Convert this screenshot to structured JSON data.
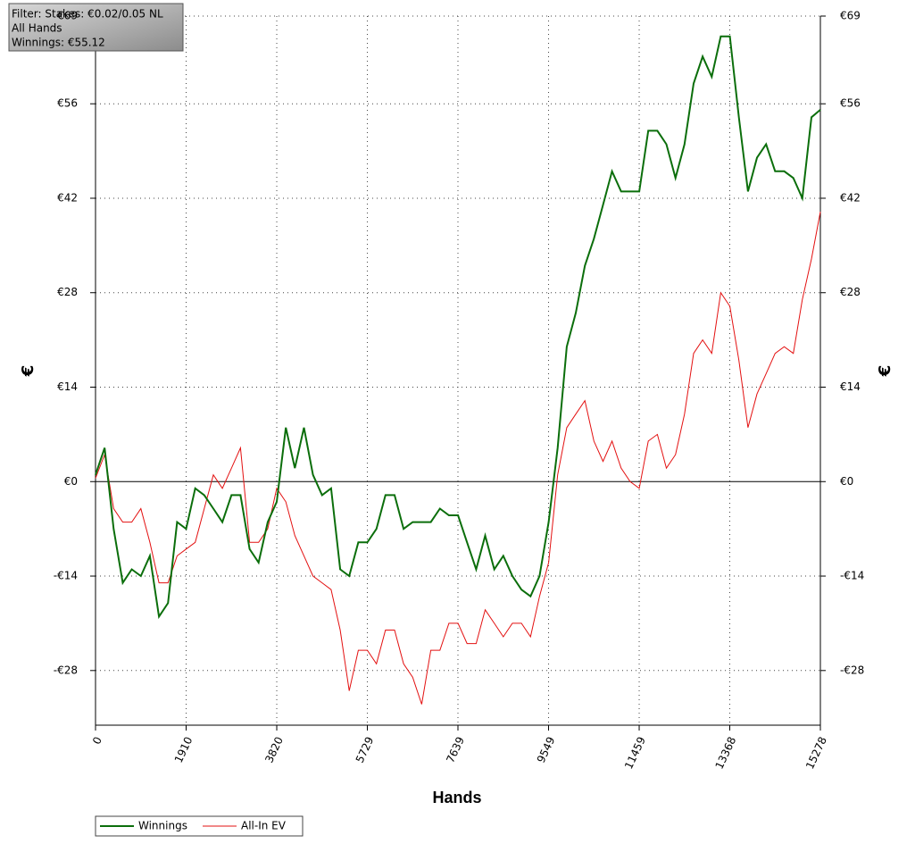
{
  "chart_data": {
    "type": "line",
    "info_box": [
      "Filter: Stakes: €0.02/0.05 NL",
      "All Hands",
      "Winnings: €55.12"
    ],
    "x_label": "Hands",
    "y_label": "€",
    "y2_label": "€",
    "x": [
      0,
      191,
      382,
      573,
      764,
      955,
      1146,
      1337,
      1528,
      1719,
      1910,
      2101,
      2292,
      2483,
      2674,
      2865,
      3056,
      3247,
      3438,
      3629,
      3820,
      4011,
      4202,
      4393,
      4584,
      4775,
      4966,
      5157,
      5348,
      5539,
      5730,
      5921,
      6112,
      6303,
      6494,
      6685,
      6876,
      7067,
      7258,
      7449,
      7640,
      7831,
      8022,
      8213,
      8404,
      8595,
      8786,
      8977,
      9168,
      9359,
      9550,
      9741,
      9932,
      10123,
      10314,
      10505,
      10696,
      10887,
      11078,
      11269,
      11460,
      11651,
      11842,
      12033,
      12224,
      12415,
      12606,
      12797,
      12988,
      13179,
      13370,
      13561,
      13752,
      13943,
      14134,
      14325,
      14516,
      14707,
      14898,
      15089,
      15278
    ],
    "series": [
      {
        "name": "Winnings",
        "color": "#0b6e0b",
        "values": [
          1,
          5,
          -7,
          -15,
          -13,
          -14,
          -11,
          -20,
          -18,
          -6,
          -7,
          -1,
          -2,
          -4,
          -6,
          -2,
          -2,
          -10,
          -12,
          -6,
          -3,
          8,
          2,
          8,
          1,
          -2,
          -1,
          -13,
          -14,
          -9,
          -9,
          -7,
          -2,
          -2,
          -7,
          -6,
          -6,
          -6,
          -4,
          -5,
          -5,
          -9,
          -13,
          -8,
          -13,
          -11,
          -14,
          -16,
          -17,
          -14,
          -6,
          5,
          20,
          25,
          32,
          36,
          41,
          46,
          43,
          43,
          43,
          52,
          52,
          50,
          45,
          50,
          59,
          63,
          60,
          66,
          66,
          54,
          43,
          48,
          50,
          46,
          46,
          45,
          42,
          54,
          55.12
        ]
      },
      {
        "name": "All-In EV",
        "color": "#e31010",
        "values": [
          0.5,
          4,
          -4,
          -6,
          -6,
          -4,
          -9,
          -15,
          -15,
          -11,
          -10,
          -9,
          -4,
          1,
          -1,
          2,
          5,
          -9,
          -9,
          -7,
          -1,
          -3,
          -8,
          -11,
          -14,
          -15,
          -16,
          -22,
          -31,
          -25,
          -25,
          -27,
          -22,
          -22,
          -27,
          -29,
          -33,
          -25,
          -25,
          -21,
          -21,
          -24,
          -24,
          -19,
          -21,
          -23,
          -21,
          -21,
          -23,
          -17,
          -12,
          1,
          8,
          10,
          12,
          6,
          3,
          6,
          2,
          0,
          -1,
          6,
          7,
          2,
          4,
          10,
          19,
          21,
          19,
          28,
          26,
          18,
          8,
          13,
          16,
          19,
          20,
          19,
          27,
          33,
          40
        ]
      }
    ],
    "xlim": [
      0,
      15278
    ],
    "xticks": [
      0,
      1910,
      3820,
      5729,
      7639,
      9549,
      11459,
      13368,
      15278
    ],
    "ylim": [
      -36.1,
      69
    ],
    "yticks": [
      {
        "value": -28,
        "label": "-€28"
      },
      {
        "value": -14,
        "label": "-€14"
      },
      {
        "value": 0,
        "label": "€0"
      },
      {
        "value": 14,
        "label": "€14"
      },
      {
        "value": 28,
        "label": "€28"
      },
      {
        "value": 42,
        "label": "€42"
      },
      {
        "value": 56,
        "label": "€56"
      },
      {
        "value": 69,
        "label": "€69"
      }
    ],
    "grid": true
  }
}
